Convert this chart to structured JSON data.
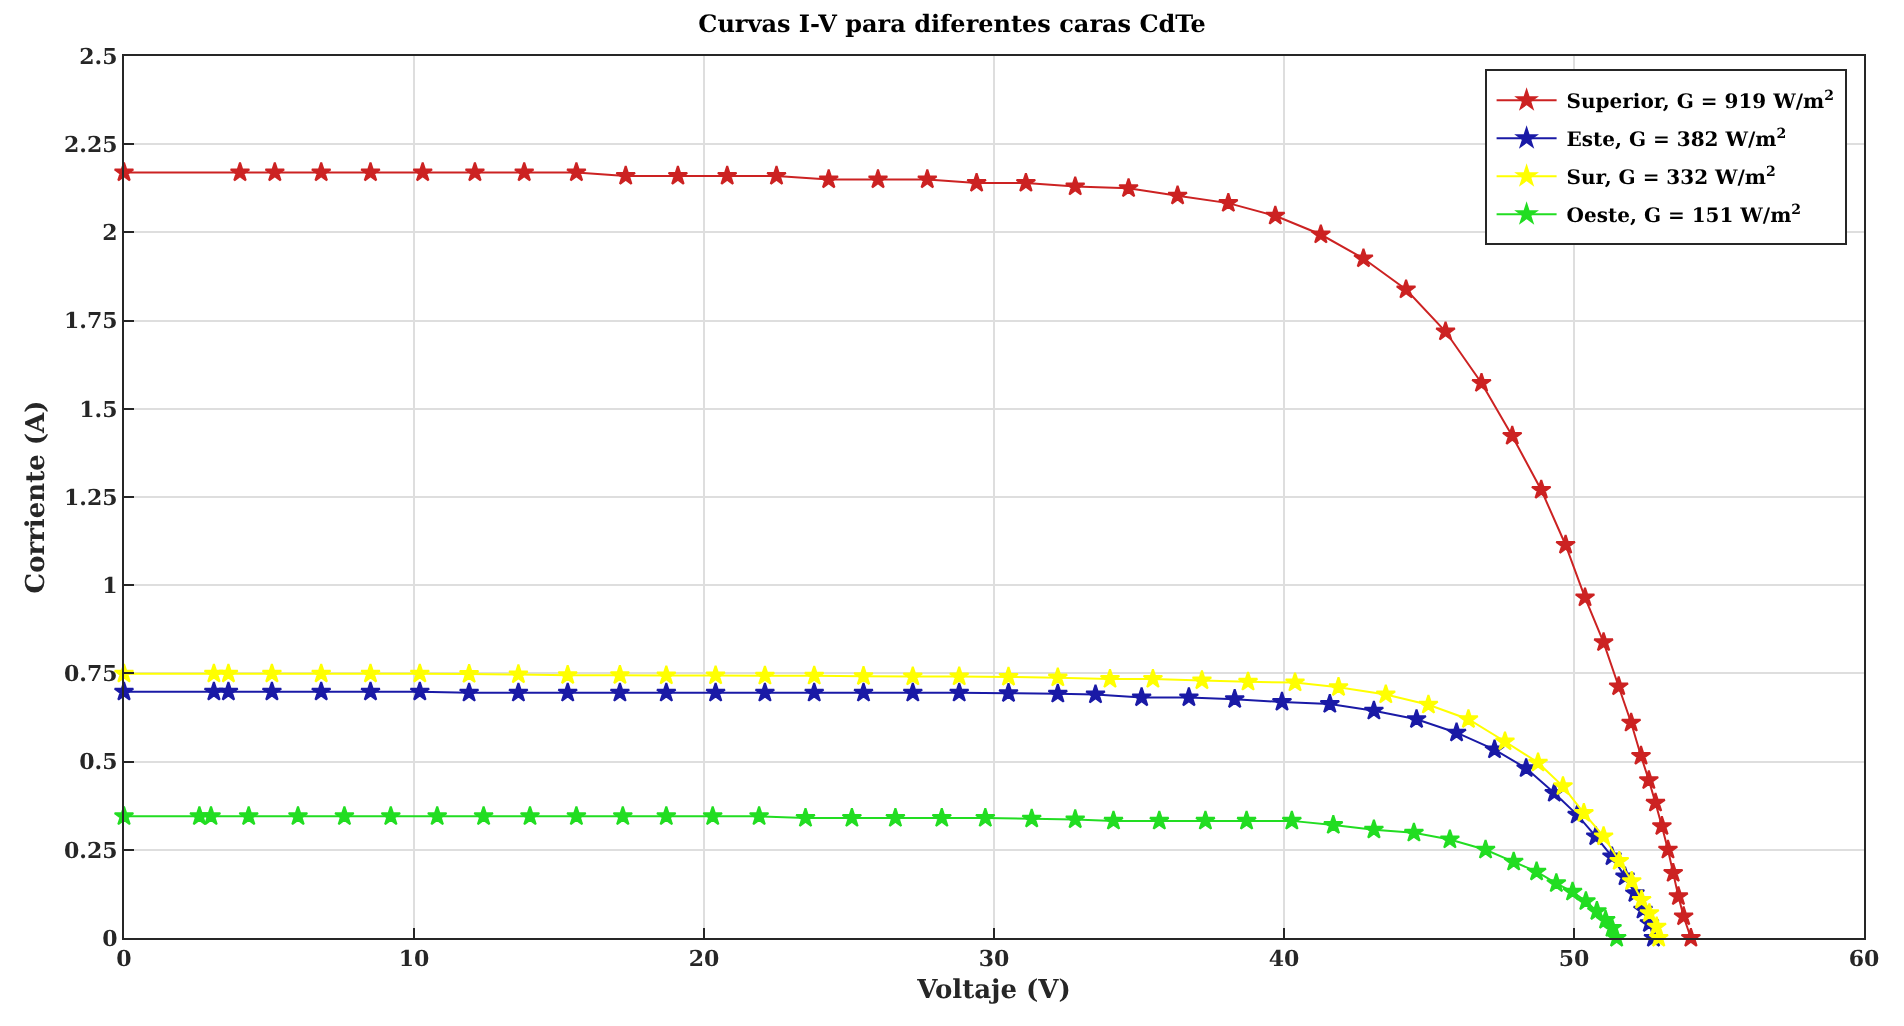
{
  "chart_data": {
    "type": "line",
    "title": "Curvas I-V para diferentes caras CdTe",
    "xlabel": "Voltaje (V)",
    "ylabel": "Corriente (A)",
    "xlim": [
      0,
      60
    ],
    "xticks": [
      0,
      10,
      20,
      30,
      40,
      50,
      60
    ],
    "ylim": [
      0,
      2.5
    ],
    "yticks": [
      0,
      0.25,
      0.5,
      0.75,
      1,
      1.25,
      1.5,
      1.75,
      2,
      2.25,
      2.5
    ],
    "grid": true,
    "legend": "top right",
    "marker": "star",
    "line_style": "solid",
    "series": [
      {
        "name": "Superior, G = 919 W/m$^{2}$",
        "color": "#cc2222",
        "x": [
          0,
          4,
          5.2,
          6.8,
          8.5,
          10.3,
          12.1,
          13.8,
          15.6,
          17.3,
          19.1,
          20.8,
          22.5,
          24.3,
          26,
          27.7,
          29.4,
          31.1,
          32.8,
          34.64,
          36.33,
          38.08,
          39.7,
          41.27,
          42.74,
          44.21,
          45.57,
          46.81,
          47.87,
          48.87,
          49.71,
          50.38,
          51.02,
          51.54,
          51.97,
          52.31,
          52.58,
          52.81,
          53.03,
          53.24,
          53.42,
          53.6,
          53.78,
          54.03
        ],
        "values": [
          2.17,
          2.17,
          2.17,
          2.17,
          2.17,
          2.17,
          2.17,
          2.17,
          2.17,
          2.16,
          2.16,
          2.16,
          2.16,
          2.15,
          2.15,
          2.15,
          2.14,
          2.14,
          2.13,
          2.125,
          2.104,
          2.083,
          2.047,
          1.994,
          1.926,
          1.838,
          1.719,
          1.573,
          1.423,
          1.27,
          1.114,
          0.965,
          0.838,
          0.713,
          0.61,
          0.516,
          0.447,
          0.383,
          0.317,
          0.25,
          0.184,
          0.118,
          0.061,
          0
        ]
      },
      {
        "name": "Este, G = 382 W/m$^{2}$",
        "color": "#1a1aa6",
        "x": [
          0,
          3.1,
          3.6,
          5.1,
          6.8,
          8.5,
          10.2,
          11.9,
          13.6,
          15.3,
          17.1,
          18.7,
          20.4,
          22.1,
          23.8,
          25.5,
          27.2,
          28.8,
          30.5,
          32.2,
          33.5,
          35.09,
          36.72,
          38.3,
          39.93,
          41.58,
          43.1,
          44.57,
          45.95,
          47.26,
          48.35,
          49.32,
          50.11,
          50.75,
          51.31,
          51.76,
          52.1,
          52.38,
          52.6,
          52.74
        ],
        "values": [
          0.698,
          0.698,
          0.698,
          0.698,
          0.698,
          0.698,
          0.698,
          0.695,
          0.695,
          0.695,
          0.695,
          0.695,
          0.695,
          0.695,
          0.695,
          0.695,
          0.695,
          0.695,
          0.694,
          0.692,
          0.69,
          0.682,
          0.682,
          0.677,
          0.669,
          0.663,
          0.644,
          0.62,
          0.582,
          0.534,
          0.481,
          0.411,
          0.349,
          0.288,
          0.231,
          0.174,
          0.127,
          0.08,
          0.042,
          0
        ]
      },
      {
        "name": "Sur, G = 332 W/m$^{2}$",
        "color": "#ffff00",
        "x": [
          0,
          3.1,
          3.6,
          5.1,
          6.8,
          8.5,
          10.2,
          11.9,
          13.6,
          15.3,
          17.1,
          18.7,
          20.4,
          22.1,
          23.8,
          25.5,
          27.2,
          28.8,
          30.5,
          32.2,
          34.0,
          35.48,
          37.17,
          38.76,
          40.38,
          41.88,
          43.51,
          44.98,
          46.36,
          47.62,
          48.76,
          49.62,
          50.34,
          51.02,
          51.56,
          51.99,
          52.33,
          52.6,
          52.85,
          52.92
        ],
        "values": [
          0.749,
          0.749,
          0.749,
          0.749,
          0.749,
          0.749,
          0.749,
          0.748,
          0.747,
          0.745,
          0.745,
          0.744,
          0.744,
          0.743,
          0.743,
          0.742,
          0.741,
          0.741,
          0.74,
          0.738,
          0.734,
          0.734,
          0.73,
          0.726,
          0.724,
          0.711,
          0.69,
          0.661,
          0.62,
          0.557,
          0.497,
          0.43,
          0.354,
          0.288,
          0.218,
          0.161,
          0.108,
          0.07,
          0.032,
          0
        ]
      },
      {
        "name": "Oeste, G = 151 W/m$^{2}$",
        "color": "#22dd22",
        "x": [
          0,
          2.6,
          3,
          4.3,
          6,
          7.6,
          9.2,
          10.8,
          12.4,
          14,
          15.6,
          17.2,
          18.7,
          20.3,
          21.9,
          23.5,
          25.1,
          26.6,
          28.2,
          29.7,
          31.3,
          32.8,
          34.12,
          35.7,
          37.29,
          38.71,
          40.27,
          41.7,
          43.1,
          44.48,
          45.72,
          46.95,
          47.92,
          48.71,
          49.39,
          49.95,
          50.41,
          50.79,
          51.09,
          51.31,
          51.47
        ],
        "values": [
          0.345,
          0.345,
          0.345,
          0.345,
          0.345,
          0.345,
          0.345,
          0.345,
          0.345,
          0.345,
          0.345,
          0.345,
          0.345,
          0.345,
          0.345,
          0.34,
          0.34,
          0.34,
          0.34,
          0.34,
          0.338,
          0.336,
          0.332,
          0.332,
          0.332,
          0.332,
          0.332,
          0.32,
          0.307,
          0.298,
          0.279,
          0.25,
          0.216,
          0.188,
          0.155,
          0.131,
          0.104,
          0.076,
          0.051,
          0.028,
          0
        ]
      }
    ]
  }
}
